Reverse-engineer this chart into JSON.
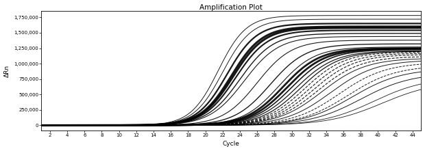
{
  "title": "Amplification Plot",
  "xlabel": "Cycle",
  "ylabel": "ΔRn",
  "xlim": [
    1,
    45
  ],
  "ylim": [
    -80000,
    1850000
  ],
  "xticks": [
    2,
    4,
    6,
    8,
    10,
    12,
    14,
    16,
    18,
    20,
    22,
    24,
    26,
    28,
    30,
    32,
    34,
    36,
    38,
    40,
    42,
    44
  ],
  "yticks": [
    0,
    250000,
    500000,
    750000,
    1000000,
    1250000,
    1500000,
    1750000
  ],
  "ytick_labels": [
    "0",
    "250,000",
    "500,000",
    "750,000",
    "1,000,000",
    "1,250,000",
    "1,500,000",
    "1,750,000"
  ],
  "background_color": "#ffffff",
  "line_color": "#000000",
  "curves": [
    {
      "ct": 21.5,
      "plateau": 1780000,
      "k": 0.62,
      "lw": 0.7,
      "ls": "-"
    },
    {
      "ct": 22.0,
      "plateau": 1720000,
      "k": 0.6,
      "lw": 0.7,
      "ls": "-"
    },
    {
      "ct": 22.5,
      "plateau": 1650000,
      "k": 0.58,
      "lw": 1.6,
      "ls": "-"
    },
    {
      "ct": 23.0,
      "plateau": 1600000,
      "k": 0.56,
      "lw": 2.2,
      "ls": "-"
    },
    {
      "ct": 23.2,
      "plateau": 1580000,
      "k": 0.55,
      "lw": 2.2,
      "ls": "-"
    },
    {
      "ct": 23.5,
      "plateau": 1540000,
      "k": 0.54,
      "lw": 1.5,
      "ls": "-"
    },
    {
      "ct": 24.0,
      "plateau": 1490000,
      "k": 0.52,
      "lw": 1.0,
      "ls": "-"
    },
    {
      "ct": 24.5,
      "plateau": 1440000,
      "k": 0.5,
      "lw": 0.8,
      "ls": "-"
    },
    {
      "ct": 26.0,
      "plateau": 1380000,
      "k": 0.5,
      "lw": 0.8,
      "ls": "-"
    },
    {
      "ct": 27.5,
      "plateau": 1320000,
      "k": 0.48,
      "lw": 1.0,
      "ls": "-"
    },
    {
      "ct": 28.5,
      "plateau": 1270000,
      "k": 0.48,
      "lw": 0.8,
      "ls": "-"
    },
    {
      "ct": 29.0,
      "plateau": 1250000,
      "k": 0.47,
      "lw": 2.0,
      "ls": "-"
    },
    {
      "ct": 29.5,
      "plateau": 1240000,
      "k": 0.46,
      "lw": 2.0,
      "ls": "-"
    },
    {
      "ct": 30.0,
      "plateau": 1230000,
      "k": 0.45,
      "lw": 1.2,
      "ls": "-"
    },
    {
      "ct": 30.5,
      "plateau": 1210000,
      "k": 0.44,
      "lw": 0.9,
      "ls": "-"
    },
    {
      "ct": 31.0,
      "plateau": 1200000,
      "k": 0.44,
      "lw": 0.9,
      "ls": "-"
    },
    {
      "ct": 31.5,
      "plateau": 1190000,
      "k": 0.43,
      "lw": 0.8,
      "ls": "--"
    },
    {
      "ct": 32.0,
      "plateau": 1170000,
      "k": 0.42,
      "lw": 0.8,
      "ls": "--"
    },
    {
      "ct": 32.5,
      "plateau": 1150000,
      "k": 0.41,
      "lw": 0.8,
      "ls": "--"
    },
    {
      "ct": 33.0,
      "plateau": 1120000,
      "k": 0.4,
      "lw": 0.8,
      "ls": "--"
    },
    {
      "ct": 33.5,
      "plateau": 1090000,
      "k": 0.39,
      "lw": 0.7,
      "ls": "-"
    },
    {
      "ct": 34.5,
      "plateau": 1060000,
      "k": 0.38,
      "lw": 0.7,
      "ls": "-"
    },
    {
      "ct": 35.5,
      "plateau": 1020000,
      "k": 0.37,
      "lw": 0.7,
      "ls": "--"
    },
    {
      "ct": 36.5,
      "plateau": 970000,
      "k": 0.36,
      "lw": 0.7,
      "ls": "--"
    },
    {
      "ct": 37.0,
      "plateau": 920000,
      "k": 0.35,
      "lw": 0.7,
      "ls": "-"
    },
    {
      "ct": 38.0,
      "plateau": 850000,
      "k": 0.34,
      "lw": 0.7,
      "ls": "-"
    },
    {
      "ct": 39.5,
      "plateau": 780000,
      "k": 0.33,
      "lw": 0.6,
      "ls": "-"
    },
    {
      "ct": 40.5,
      "plateau": 720000,
      "k": 0.32,
      "lw": 0.6,
      "ls": "-"
    }
  ]
}
